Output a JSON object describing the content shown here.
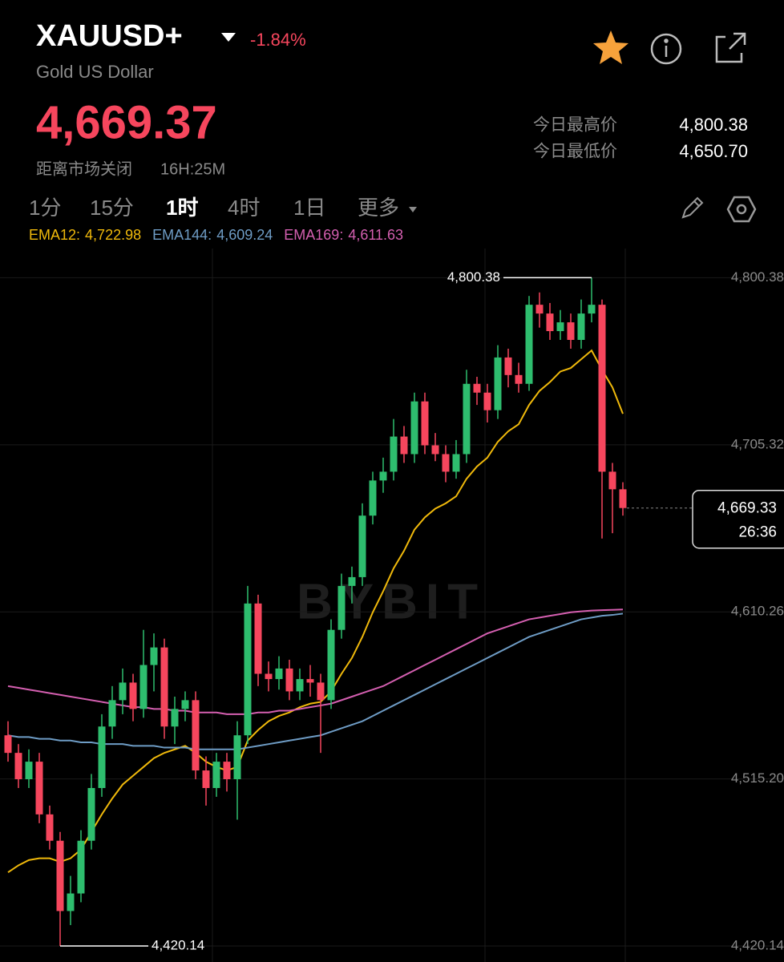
{
  "header": {
    "symbol": "XAUUSD+",
    "change": "-1.84%",
    "name": "Gold US Dollar",
    "price": "4,669.37",
    "market_close_label": "距离市场关闭",
    "market_close_time": "16H:25M",
    "high_label": "今日最高价",
    "high_value": "4,800.38",
    "low_label": "今日最低价",
    "low_value": "4,650.70"
  },
  "tabs": {
    "items": [
      "1分",
      "15分",
      "1时",
      "4时",
      "1日",
      "更多"
    ],
    "active": 2
  },
  "chart_data": {
    "type": "candlestick",
    "watermark": "BYBIT",
    "up_color": "#2ebd6e",
    "down_color": "#f6465d",
    "candles": [
      [
        4540,
        4548,
        4525,
        4530
      ],
      [
        4530,
        4535,
        4510,
        4515
      ],
      [
        4515,
        4532,
        4510,
        4525
      ],
      [
        4525,
        4530,
        4490,
        4495
      ],
      [
        4495,
        4500,
        4475,
        4480
      ],
      [
        4480,
        4485,
        4420.14,
        4440
      ],
      [
        4440,
        4460,
        4432,
        4450
      ],
      [
        4450,
        4486,
        4445,
        4480
      ],
      [
        4480,
        4518,
        4475,
        4510
      ],
      [
        4510,
        4552,
        4505,
        4545
      ],
      [
        4545,
        4568,
        4538,
        4560
      ],
      [
        4560,
        4578,
        4552,
        4570
      ],
      [
        4570,
        4575,
        4548,
        4555
      ],
      [
        4555,
        4600,
        4550,
        4580
      ],
      [
        4580,
        4598,
        4565,
        4590
      ],
      [
        4590,
        4595,
        4538,
        4545
      ],
      [
        4545,
        4562,
        4535,
        4555
      ],
      [
        4555,
        4565,
        4548,
        4560
      ],
      [
        4560,
        4565,
        4515,
        4520
      ],
      [
        4520,
        4528,
        4500,
        4510
      ],
      [
        4510,
        4530,
        4505,
        4525
      ],
      [
        4525,
        4530,
        4508,
        4515
      ],
      [
        4515,
        4548,
        4492,
        4540
      ],
      [
        4540,
        4625,
        4535,
        4615
      ],
      [
        4615,
        4620,
        4568,
        4575
      ],
      [
        4575,
        4582,
        4565,
        4572
      ],
      [
        4572,
        4585,
        4566,
        4578
      ],
      [
        4578,
        4583,
        4560,
        4565
      ],
      [
        4565,
        4578,
        4560,
        4572
      ],
      [
        4572,
        4580,
        4562,
        4570
      ],
      [
        4570,
        4575,
        4530,
        4560
      ],
      [
        4560,
        4606,
        4555,
        4600
      ],
      [
        4600,
        4632,
        4595,
        4625
      ],
      [
        4625,
        4636,
        4615,
        4630
      ],
      [
        4630,
        4672,
        4625,
        4665
      ],
      [
        4665,
        4690,
        4660,
        4685
      ],
      [
        4685,
        4698,
        4678,
        4690
      ],
      [
        4690,
        4720,
        4685,
        4710
      ],
      [
        4710,
        4716,
        4695,
        4700
      ],
      [
        4700,
        4735,
        4695,
        4730
      ],
      [
        4730,
        4735,
        4700,
        4705
      ],
      [
        4705,
        4712,
        4696,
        4700
      ],
      [
        4700,
        4705,
        4684,
        4690
      ],
      [
        4690,
        4708,
        4686,
        4700
      ],
      [
        4700,
        4748,
        4695,
        4740
      ],
      [
        4740,
        4744,
        4728,
        4735
      ],
      [
        4735,
        4740,
        4718,
        4725
      ],
      [
        4725,
        4762,
        4720,
        4755
      ],
      [
        4755,
        4760,
        4738,
        4745
      ],
      [
        4745,
        4752,
        4735,
        4740
      ],
      [
        4740,
        4790,
        4736,
        4785
      ],
      [
        4785,
        4792,
        4772,
        4780
      ],
      [
        4780,
        4786,
        4765,
        4770
      ],
      [
        4770,
        4782,
        4765,
        4775
      ],
      [
        4775,
        4780,
        4760,
        4765
      ],
      [
        4765,
        4788,
        4760,
        4780
      ],
      [
        4780,
        4800.38,
        4775,
        4785
      ],
      [
        4785,
        4788,
        4652,
        4690
      ],
      [
        4690,
        4695,
        4655,
        4680
      ],
      [
        4680,
        4684,
        4665,
        4669.33
      ]
    ],
    "series": [
      {
        "name": "EMA12",
        "color": "#f0b90b",
        "last_label": "4,722.98",
        "values": [
          4462,
          4466,
          4469,
          4470,
          4470,
          4468,
          4470,
          4475,
          4485,
          4495,
          4504,
          4512,
          4517,
          4522,
          4527,
          4530,
          4532,
          4534,
          4530,
          4525,
          4522,
          4520,
          4522,
          4537,
          4543,
          4548,
          4551,
          4553,
          4556,
          4558,
          4559,
          4565,
          4575,
          4584,
          4596,
          4610,
          4622,
          4635,
          4645,
          4657,
          4664,
          4669,
          4672,
          4676,
          4686,
          4693,
          4698,
          4707,
          4713,
          4717,
          4728,
          4736,
          4741,
          4747,
          4749,
          4754,
          4759,
          4748,
          4738,
          4722.98
        ]
      },
      {
        "name": "EMA144",
        "color": "#6e9cc5",
        "last_label": "4,609.24",
        "values": [
          4540,
          4539,
          4539,
          4538,
          4538,
          4537,
          4537,
          4536,
          4536,
          4535,
          4535,
          4535,
          4534,
          4534,
          4534,
          4533,
          4533,
          4533,
          4532,
          4532,
          4532,
          4532,
          4532,
          4533,
          4534,
          4535,
          4536,
          4537,
          4538,
          4539,
          4540,
          4542,
          4544,
          4546,
          4548,
          4551,
          4554,
          4557,
          4560,
          4563,
          4566,
          4569,
          4572,
          4575,
          4578,
          4581,
          4584,
          4587,
          4590,
          4593,
          4596,
          4598,
          4600,
          4602,
          4604,
          4606,
          4607,
          4608,
          4608.5,
          4609.24
        ]
      },
      {
        "name": "EMA169",
        "color": "#d45fb0",
        "last_label": "4,611.63",
        "values": [
          4568,
          4567,
          4566,
          4565,
          4564,
          4563,
          4562,
          4561,
          4560,
          4559,
          4558,
          4557,
          4556,
          4556,
          4555,
          4555,
          4554,
          4554,
          4553,
          4553,
          4553,
          4552,
          4552,
          4552,
          4553,
          4553,
          4554,
          4554,
          4555,
          4556,
          4557,
          4558,
          4560,
          4562,
          4564,
          4566,
          4568,
          4571,
          4574,
          4577,
          4580,
          4583,
          4586,
          4589,
          4592,
          4595,
          4598,
          4600,
          4602,
          4604,
          4606,
          4607,
          4608,
          4609,
          4610,
          4610.5,
          4611,
          4611.2,
          4611.4,
          4611.63
        ]
      }
    ],
    "ylim": [
      4411,
      4817
    ],
    "yticks": [
      {
        "value": 4420.14,
        "label": "4,420.14"
      },
      {
        "value": 4515.2,
        "label": "4,515.20"
      },
      {
        "value": 4610.26,
        "label": "4,610.26"
      },
      {
        "value": 4705.32,
        "label": "4,705.32"
      },
      {
        "value": 4800.38,
        "label": "4,800.38"
      }
    ],
    "grid": true,
    "high_marker": {
      "value": 4800.38,
      "label": "4,800.38"
    },
    "low_marker": {
      "value": 4420.14,
      "label": "4,420.14"
    },
    "last_price": {
      "value": 4669.33,
      "label": "4,669.33",
      "countdown": "26:36"
    }
  }
}
